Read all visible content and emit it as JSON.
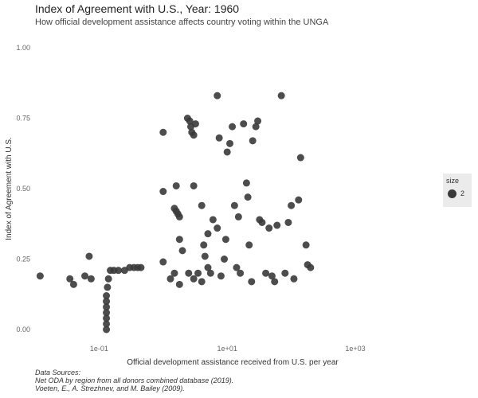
{
  "chart_data": {
    "type": "scatter",
    "title": "Index of Agreement with U.S., Year: 1960",
    "subtitle": "How official development assistance affects country voting within the UNGA",
    "xlabel": "Official development assistance received from U.S. per year",
    "ylabel": "Index of Agreement with U.S.",
    "x_scale": "log10",
    "xlim": [
      0.01,
      1000
    ],
    "ylim": [
      0,
      1
    ],
    "x_ticks": [
      0.1,
      10,
      1000
    ],
    "x_tick_labels": [
      "1e-01",
      "1e+01",
      "1e+03"
    ],
    "y_ticks": [
      0,
      0.25,
      0.5,
      0.75,
      1
    ],
    "y_tick_labels": [
      "0.00",
      "0.25",
      "0.50",
      "0.75",
      "1.00"
    ],
    "grid": false,
    "legend": {
      "position": "right",
      "title": "size",
      "entries": [
        "2"
      ]
    },
    "point_color": "#3a3a3a",
    "series": [
      {
        "points": [
          [
            0.012,
            0.19
          ],
          [
            0.035,
            0.18
          ],
          [
            0.04,
            0.16
          ],
          [
            0.06,
            0.19
          ],
          [
            0.07,
            0.26
          ],
          [
            0.075,
            0.18
          ],
          [
            0.13,
            0.0
          ],
          [
            0.13,
            0.02
          ],
          [
            0.13,
            0.04
          ],
          [
            0.13,
            0.06
          ],
          [
            0.13,
            0.08
          ],
          [
            0.13,
            0.1
          ],
          [
            0.13,
            0.12
          ],
          [
            0.135,
            0.15
          ],
          [
            0.14,
            0.18
          ],
          [
            0.15,
            0.21
          ],
          [
            0.17,
            0.21
          ],
          [
            0.2,
            0.21
          ],
          [
            0.25,
            0.21
          ],
          [
            0.3,
            0.22
          ],
          [
            0.35,
            0.22
          ],
          [
            0.4,
            0.22
          ],
          [
            0.45,
            0.22
          ],
          [
            1.0,
            0.7
          ],
          [
            1.0,
            0.49
          ],
          [
            1.0,
            0.24
          ],
          [
            1.3,
            0.18
          ],
          [
            1.5,
            0.2
          ],
          [
            1.8,
            0.16
          ],
          [
            1.5,
            0.43
          ],
          [
            1.6,
            0.42
          ],
          [
            1.7,
            0.41
          ],
          [
            1.8,
            0.4
          ],
          [
            1.6,
            0.51
          ],
          [
            1.8,
            0.32
          ],
          [
            2.0,
            0.28
          ],
          [
            2.4,
            0.75
          ],
          [
            2.6,
            0.74
          ],
          [
            2.7,
            0.72
          ],
          [
            2.8,
            0.7
          ],
          [
            3.0,
            0.69
          ],
          [
            3.2,
            0.73
          ],
          [
            2.5,
            0.2
          ],
          [
            3.0,
            0.18
          ],
          [
            3.0,
            0.51
          ],
          [
            3.5,
            0.2
          ],
          [
            4.0,
            0.17
          ],
          [
            4.0,
            0.44
          ],
          [
            4.3,
            0.3
          ],
          [
            4.5,
            0.26
          ],
          [
            5.0,
            0.22
          ],
          [
            5.0,
            0.34
          ],
          [
            5.5,
            0.2
          ],
          [
            6.0,
            0.39
          ],
          [
            7.0,
            0.83
          ],
          [
            7.0,
            0.36
          ],
          [
            7.5,
            0.68
          ],
          [
            8.0,
            0.19
          ],
          [
            9.0,
            0.25
          ],
          [
            9.5,
            0.32
          ],
          [
            10.0,
            0.63
          ],
          [
            11.0,
            0.66
          ],
          [
            12.0,
            0.72
          ],
          [
            13.0,
            0.44
          ],
          [
            14.0,
            0.22
          ],
          [
            15.0,
            0.4
          ],
          [
            16.0,
            0.2
          ],
          [
            18.0,
            0.73
          ],
          [
            20.0,
            0.52
          ],
          [
            21.0,
            0.47
          ],
          [
            22.0,
            0.3
          ],
          [
            24.0,
            0.17
          ],
          [
            25.0,
            0.67
          ],
          [
            28.0,
            0.72
          ],
          [
            30.0,
            0.74
          ],
          [
            32.0,
            0.39
          ],
          [
            35.0,
            0.38
          ],
          [
            40.0,
            0.2
          ],
          [
            45.0,
            0.36
          ],
          [
            50.0,
            0.19
          ],
          [
            55.0,
            0.17
          ],
          [
            60.0,
            0.37
          ],
          [
            70.0,
            0.83
          ],
          [
            80.0,
            0.2
          ],
          [
            90.0,
            0.38
          ],
          [
            100.0,
            0.44
          ],
          [
            110.0,
            0.18
          ],
          [
            130.0,
            0.46
          ],
          [
            140.0,
            0.61
          ],
          [
            170.0,
            0.3
          ],
          [
            180.0,
            0.23
          ],
          [
            200.0,
            0.22
          ]
        ]
      }
    ]
  },
  "caption": {
    "line1": "Data Sources:",
    "line2": "Net ODA by region from all donors combined database (2019).",
    "line3": "Voeten, E., A. Strezhnev, and M. Bailey (2009)."
  }
}
